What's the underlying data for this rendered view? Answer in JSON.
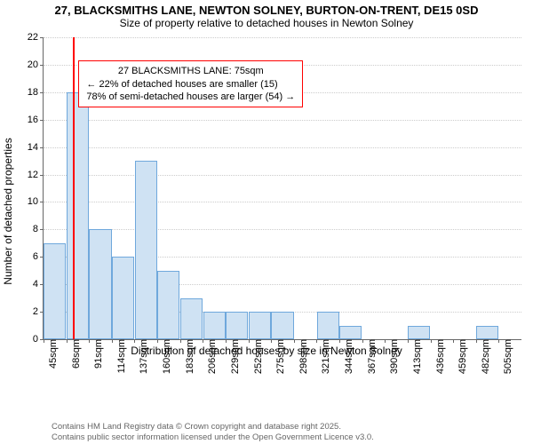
{
  "title": {
    "main": "27, BLACKSMITHS LANE, NEWTON SOLNEY, BURTON-ON-TRENT, DE15 0SD",
    "sub": "Size of property relative to detached houses in Newton Solney"
  },
  "axes": {
    "ylabel": "Number of detached properties",
    "xlabel": "Distribution of detached houses by size in Newton Solney",
    "ylim_max": 22,
    "ytick_step": 2,
    "bar_fill": "#cfe2f3",
    "bar_border": "#6fa8dc",
    "grid_color": "#cccccc"
  },
  "bars": {
    "bin_start": 45,
    "bin_width_sqm": 23,
    "unit_suffix": "sqm",
    "values": [
      7,
      18,
      8,
      6,
      13,
      5,
      3,
      2,
      2,
      2,
      2,
      0,
      2,
      1,
      0,
      0,
      1,
      0,
      0,
      1,
      0
    ]
  },
  "marker": {
    "value_sqm": 75,
    "color": "#ff0000"
  },
  "annotation": {
    "border_color": "#ff0000",
    "lines": [
      "27 BLACKSMITHS LANE: 75sqm",
      "← 22% of detached houses are smaller (15)",
      "78% of semi-detached houses are larger (54) →"
    ]
  },
  "footnote": {
    "line1": "Contains HM Land Registry data © Crown copyright and database right 2025.",
    "line2": "Contains public sector information licensed under the Open Government Licence v3.0."
  }
}
